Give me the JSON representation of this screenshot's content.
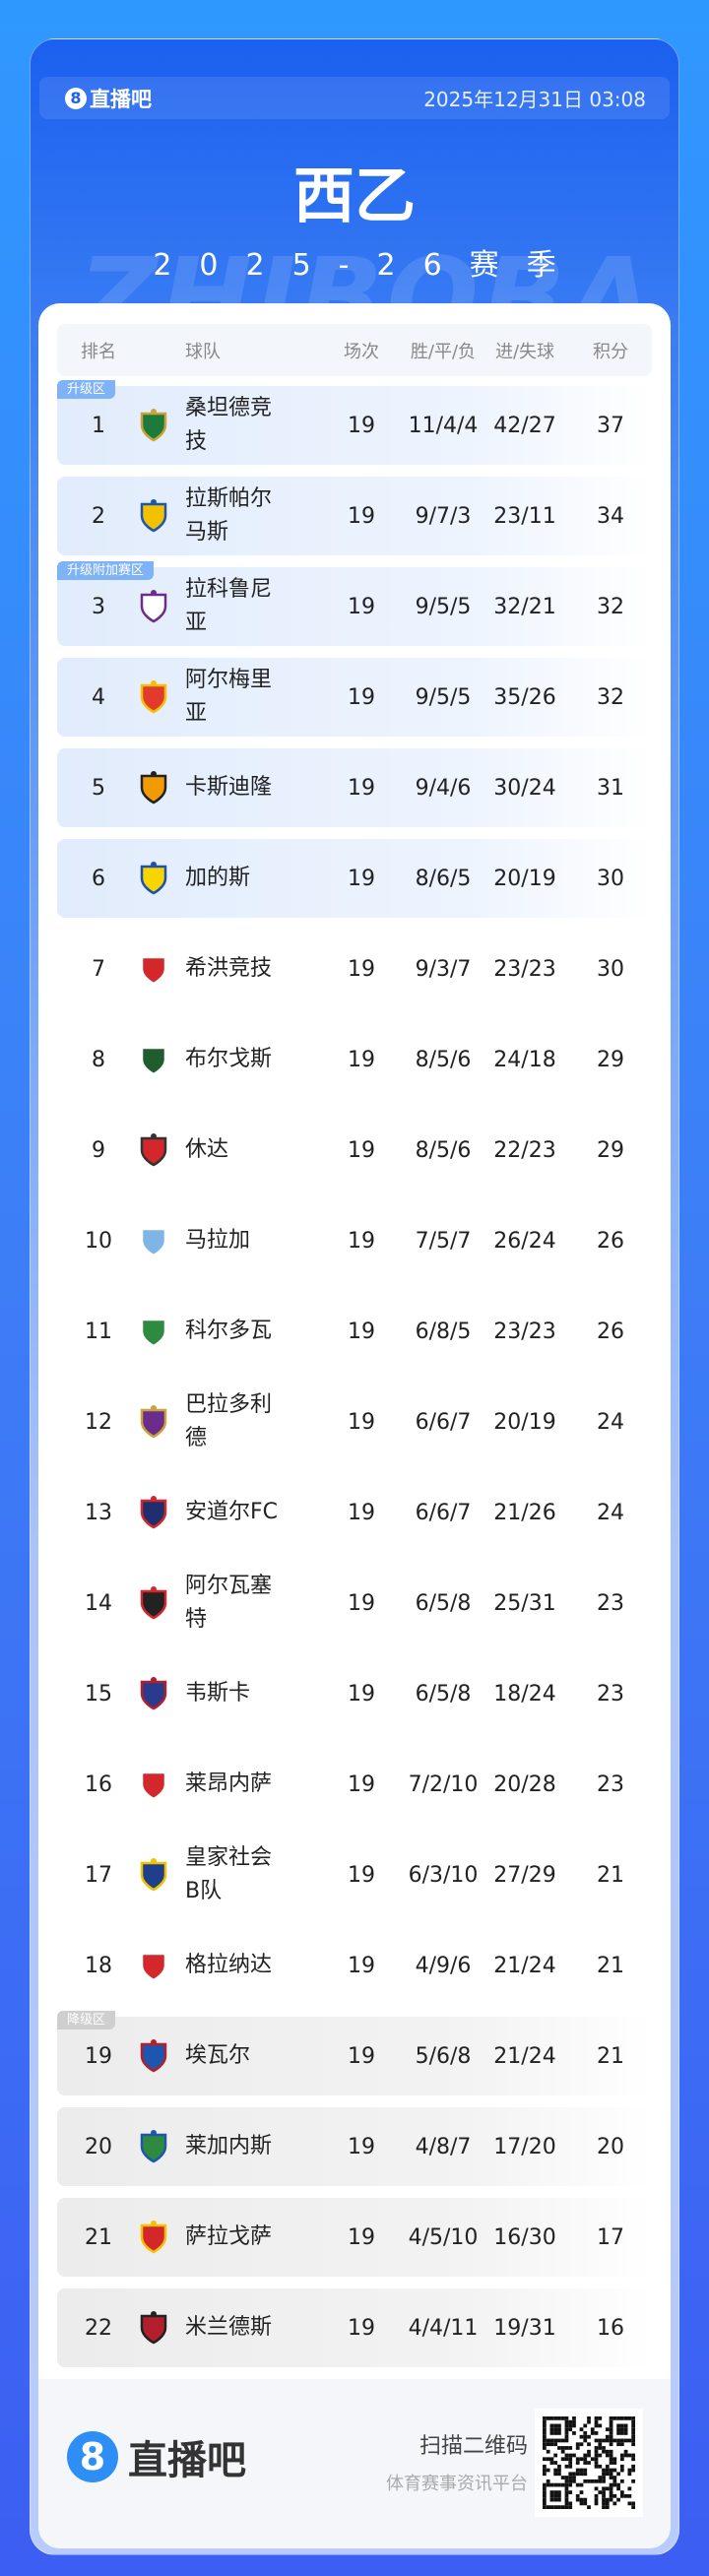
{
  "header": {
    "brand": "直播吧",
    "brand_digit": "8",
    "datetime": "2025年12月31日 03:08",
    "title": "西乙",
    "season": "2025-26赛季",
    "watermark": "ZHIBOBA"
  },
  "table": {
    "columns": [
      "排名",
      "球队",
      "场次",
      "胜/平/负",
      "进/失球",
      "积分"
    ],
    "zones": {
      "promotion": "升级区",
      "playoff": "升级附加赛区",
      "relegation": "降级区"
    },
    "rows": [
      {
        "rank": "1",
        "team": "桑坦德竞技",
        "played": "19",
        "wdl": "11/4/4",
        "goals": "42/27",
        "points": "37",
        "zone": "up",
        "badge": "升级区",
        "colors": [
          "#1d7a3a",
          "#c9a43a"
        ]
      },
      {
        "rank": "2",
        "team": "拉斯帕尔马斯",
        "played": "19",
        "wdl": "9/7/3",
        "goals": "23/11",
        "points": "34",
        "zone": "up",
        "colors": [
          "#f2c200",
          "#1c56b0"
        ]
      },
      {
        "rank": "3",
        "team": "拉科鲁尼亚",
        "played": "19",
        "wdl": "9/5/5",
        "goals": "32/21",
        "points": "32",
        "zone": "up",
        "badge": "升级附加赛区",
        "colors": [
          "#ffffff",
          "#6b2c8c"
        ]
      },
      {
        "rank": "4",
        "team": "阿尔梅里亚",
        "played": "19",
        "wdl": "9/5/5",
        "goals": "35/26",
        "points": "32",
        "zone": "up",
        "colors": [
          "#e23b2e",
          "#f2c200"
        ]
      },
      {
        "rank": "5",
        "team": "卡斯迪隆",
        "played": "19",
        "wdl": "9/4/6",
        "goals": "30/24",
        "points": "31",
        "zone": "up",
        "colors": [
          "#f29b00",
          "#222222"
        ]
      },
      {
        "rank": "6",
        "team": "加的斯",
        "played": "19",
        "wdl": "8/6/5",
        "goals": "20/19",
        "points": "30",
        "zone": "up",
        "colors": [
          "#f7d500",
          "#1d4fb0"
        ]
      },
      {
        "rank": "7",
        "team": "希洪竞技",
        "played": "19",
        "wdl": "9/3/7",
        "goals": "23/23",
        "points": "30",
        "zone": "",
        "colors": [
          "#d3272c",
          "#ffffff"
        ]
      },
      {
        "rank": "8",
        "team": "布尔戈斯",
        "played": "19",
        "wdl": "8/5/6",
        "goals": "24/18",
        "points": "29",
        "zone": "",
        "colors": [
          "#1f5c2e",
          "#ffffff"
        ]
      },
      {
        "rank": "9",
        "team": "休达",
        "played": "19",
        "wdl": "8/5/6",
        "goals": "22/23",
        "points": "29",
        "zone": "",
        "colors": [
          "#d3272c",
          "#333333"
        ]
      },
      {
        "rank": "10",
        "team": "马拉加",
        "played": "19",
        "wdl": "7/5/7",
        "goals": "26/24",
        "points": "26",
        "zone": "",
        "colors": [
          "#7fb5e6",
          "#ffffff"
        ]
      },
      {
        "rank": "11",
        "team": "科尔多瓦",
        "played": "19",
        "wdl": "6/8/5",
        "goals": "23/23",
        "points": "26",
        "zone": "",
        "colors": [
          "#2e8a3e",
          "#ffffff"
        ]
      },
      {
        "rank": "12",
        "team": "巴拉多利德",
        "played": "19",
        "wdl": "6/6/7",
        "goals": "20/19",
        "points": "24",
        "zone": "",
        "colors": [
          "#6b2c8c",
          "#c9a43a"
        ]
      },
      {
        "rank": "13",
        "team": "安道尔FC",
        "played": "19",
        "wdl": "6/6/7",
        "goals": "21/26",
        "points": "24",
        "zone": "",
        "colors": [
          "#1f2f6e",
          "#d3272c"
        ]
      },
      {
        "rank": "14",
        "team": "阿尔瓦塞特",
        "played": "19",
        "wdl": "6/5/8",
        "goals": "25/31",
        "points": "23",
        "zone": "",
        "colors": [
          "#222222",
          "#d3272c"
        ]
      },
      {
        "rank": "15",
        "team": "韦斯卡",
        "played": "19",
        "wdl": "6/5/8",
        "goals": "18/24",
        "points": "23",
        "zone": "",
        "colors": [
          "#2a3a8c",
          "#b3202c"
        ]
      },
      {
        "rank": "16",
        "team": "莱昂内萨",
        "played": "19",
        "wdl": "7/2/10",
        "goals": "20/28",
        "points": "23",
        "zone": "",
        "colors": [
          "#d3272c",
          "#ffffff"
        ]
      },
      {
        "rank": "17",
        "team": "皇家社会B队",
        "played": "19",
        "wdl": "6/3/10",
        "goals": "27/29",
        "points": "21",
        "zone": "",
        "colors": [
          "#1f3f8c",
          "#f2c200"
        ]
      },
      {
        "rank": "18",
        "team": "格拉纳达",
        "played": "19",
        "wdl": "4/9/6",
        "goals": "21/24",
        "points": "21",
        "zone": "",
        "colors": [
          "#d3272c",
          "#ffffff"
        ]
      },
      {
        "rank": "19",
        "team": "埃瓦尔",
        "played": "19",
        "wdl": "5/6/8",
        "goals": "21/24",
        "points": "21",
        "zone": "down",
        "badge": "降级区",
        "colors": [
          "#1c56b0",
          "#b3202c"
        ]
      },
      {
        "rank": "20",
        "team": "莱加内斯",
        "played": "19",
        "wdl": "4/8/7",
        "goals": "17/20",
        "points": "20",
        "zone": "down",
        "colors": [
          "#2e8a3e",
          "#1c56b0"
        ]
      },
      {
        "rank": "21",
        "team": "萨拉戈萨",
        "played": "19",
        "wdl": "4/5/10",
        "goals": "16/30",
        "points": "17",
        "zone": "down",
        "colors": [
          "#d3272c",
          "#f2c200"
        ]
      },
      {
        "rank": "22",
        "team": "米兰德斯",
        "played": "19",
        "wdl": "4/4/11",
        "goals": "19/31",
        "points": "16",
        "zone": "down",
        "colors": [
          "#b3202c",
          "#222222"
        ]
      }
    ]
  },
  "footer": {
    "brand": "直播吧",
    "brand_digit": "8",
    "scan_label": "扫描二维码",
    "tagline": "体育赛事资讯平台"
  }
}
